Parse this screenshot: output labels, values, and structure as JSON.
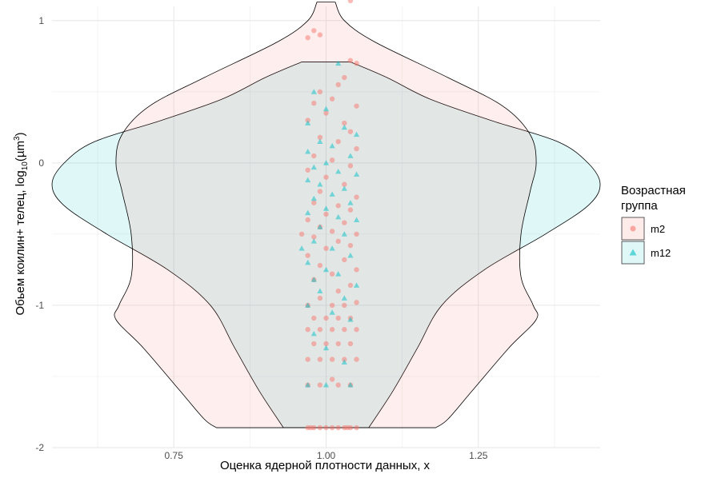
{
  "chart_data": {
    "type": "violin",
    "xlabel": "Оценка ядерной плотности данных, x",
    "ylabel_prefix": "Обьем коилин+ телец,  log",
    "ylabel_sub": "10",
    "ylabel_mid": "(µm",
    "ylabel_sup": "3",
    "ylabel_suffix": ")",
    "xlim": [
      0.55,
      1.45
    ],
    "ylim": [
      -2,
      1.1
    ],
    "x_ticks": [
      {
        "value": 0.75,
        "label": "0.75"
      },
      {
        "value": 1.0,
        "label": "1.00"
      },
      {
        "value": 1.25,
        "label": "1.25"
      }
    ],
    "y_ticks": [
      {
        "value": 1,
        "label": "1"
      },
      {
        "value": 0,
        "label": "0"
      },
      {
        "value": -1,
        "label": "-1"
      },
      {
        "value": -2,
        "label": "-2"
      }
    ],
    "grid": true,
    "legend": {
      "title_line1": "Возрастная",
      "title_line2": "группа",
      "placement": "right"
    },
    "series": [
      {
        "name": "m2",
        "color": "#F8766D",
        "fill": "#FDEBEA",
        "marker": "circle",
        "violin": [
          {
            "y": 1.13,
            "half": 0.015
          },
          {
            "y": 1.0,
            "half": 0.03
          },
          {
            "y": 0.85,
            "half": 0.08
          },
          {
            "y": 0.6,
            "half": 0.2
          },
          {
            "y": 0.4,
            "half": 0.29
          },
          {
            "y": 0.2,
            "half": 0.335
          },
          {
            "y": 0.0,
            "half": 0.345
          },
          {
            "y": -0.2,
            "half": 0.335
          },
          {
            "y": -0.5,
            "half": 0.32
          },
          {
            "y": -0.8,
            "half": 0.32
          },
          {
            "y": -1.0,
            "half": 0.34
          },
          {
            "y": -1.1,
            "half": 0.345
          },
          {
            "y": -1.3,
            "half": 0.3
          },
          {
            "y": -1.6,
            "half": 0.24
          },
          {
            "y": -1.8,
            "half": 0.2
          },
          {
            "y": -1.86,
            "half": 0.18
          }
        ],
        "points": [
          [
            1.04,
            1.14
          ],
          [
            0.98,
            0.93
          ],
          [
            0.99,
            0.9
          ],
          [
            0.97,
            0.88
          ],
          [
            1.05,
            0.7
          ],
          [
            1.04,
            0.72
          ],
          [
            1.03,
            0.6
          ],
          [
            1.02,
            0.55
          ],
          [
            0.99,
            0.5
          ],
          [
            1.01,
            0.45
          ],
          [
            0.98,
            0.42
          ],
          [
            1.05,
            0.4
          ],
          [
            1.0,
            0.35
          ],
          [
            0.97,
            0.3
          ],
          [
            1.03,
            0.28
          ],
          [
            1.04,
            0.22
          ],
          [
            0.99,
            0.18
          ],
          [
            1.02,
            0.15
          ],
          [
            1.05,
            0.1
          ],
          [
            0.98,
            0.05
          ],
          [
            1.01,
            0.02
          ],
          [
            1.04,
            -0.02
          ],
          [
            0.97,
            -0.05
          ],
          [
            1.0,
            -0.1
          ],
          [
            1.03,
            -0.15
          ],
          [
            0.99,
            -0.2
          ],
          [
            1.05,
            -0.24
          ],
          [
            0.98,
            -0.28
          ],
          [
            1.02,
            -0.3
          ],
          [
            1.04,
            -0.33
          ],
          [
            1.0,
            -0.36
          ],
          [
            0.97,
            -0.4
          ],
          [
            1.03,
            -0.42
          ],
          [
            0.99,
            -0.45
          ],
          [
            1.01,
            -0.48
          ],
          [
            1.05,
            -0.5
          ],
          [
            0.98,
            -0.52
          ],
          [
            1.02,
            -0.55
          ],
          [
            1.04,
            -0.58
          ],
          [
            0.96,
            -0.5
          ],
          [
            1.0,
            -0.6
          ],
          [
            0.97,
            -0.65
          ],
          [
            1.03,
            -0.68
          ],
          [
            0.99,
            -0.72
          ],
          [
            1.05,
            -0.75
          ],
          [
            1.01,
            -0.78
          ],
          [
            0.98,
            -0.82
          ],
          [
            1.04,
            -0.86
          ],
          [
            1.02,
            -0.9
          ],
          [
            0.99,
            -0.95
          ],
          [
            1.05,
            -0.98
          ],
          [
            0.97,
            -1.0
          ],
          [
            1.01,
            -1.0
          ],
          [
            1.03,
            -1.0
          ],
          [
            0.98,
            -1.09
          ],
          [
            1.0,
            -1.09
          ],
          [
            1.02,
            -1.09
          ],
          [
            1.04,
            -1.09
          ],
          [
            0.97,
            -1.17
          ],
          [
            0.99,
            -1.17
          ],
          [
            1.01,
            -1.17
          ],
          [
            1.03,
            -1.17
          ],
          [
            1.05,
            -1.17
          ],
          [
            0.98,
            -1.27
          ],
          [
            1.0,
            -1.27
          ],
          [
            1.02,
            -1.27
          ],
          [
            1.04,
            -1.27
          ],
          [
            0.97,
            -1.38
          ],
          [
            0.99,
            -1.38
          ],
          [
            1.01,
            -1.38
          ],
          [
            1.03,
            -1.38
          ],
          [
            1.05,
            -1.38
          ],
          [
            1.01,
            -1.52
          ],
          [
            0.97,
            -1.56
          ],
          [
            0.99,
            -1.56
          ],
          [
            1.02,
            -1.56
          ],
          [
            1.04,
            -1.56
          ],
          [
            0.97,
            -1.86
          ],
          [
            0.98,
            -1.86
          ],
          [
            0.99,
            -1.86
          ],
          [
            1.0,
            -1.86
          ],
          [
            1.01,
            -1.86
          ],
          [
            1.02,
            -1.86
          ],
          [
            1.03,
            -1.86
          ],
          [
            1.04,
            -1.86
          ],
          [
            1.05,
            -1.86
          ],
          [
            0.975,
            -1.86
          ],
          [
            1.035,
            -1.86
          ]
        ]
      },
      {
        "name": "m12",
        "color": "#00BFC4",
        "fill": "#E0F7F8",
        "marker": "triangle",
        "violin": [
          {
            "y": 0.71,
            "half": 0.04
          },
          {
            "y": 0.6,
            "half": 0.1
          },
          {
            "y": 0.45,
            "half": 0.17
          },
          {
            "y": 0.3,
            "half": 0.27
          },
          {
            "y": 0.15,
            "half": 0.38
          },
          {
            "y": 0.0,
            "half": 0.43
          },
          {
            "y": -0.15,
            "half": 0.45
          },
          {
            "y": -0.3,
            "half": 0.43
          },
          {
            "y": -0.5,
            "half": 0.36
          },
          {
            "y": -0.75,
            "half": 0.26
          },
          {
            "y": -1.0,
            "half": 0.19
          },
          {
            "y": -1.3,
            "half": 0.15
          },
          {
            "y": -1.6,
            "half": 0.11
          },
          {
            "y": -1.86,
            "half": 0.07
          }
        ],
        "points": [
          [
            1.02,
            0.7
          ],
          [
            0.98,
            0.5
          ],
          [
            1.0,
            0.38
          ],
          [
            0.97,
            0.28
          ],
          [
            1.03,
            0.25
          ],
          [
            1.05,
            0.2
          ],
          [
            0.99,
            0.15
          ],
          [
            1.01,
            0.12
          ],
          [
            0.97,
            0.08
          ],
          [
            1.04,
            0.05
          ],
          [
            1.0,
            0.0
          ],
          [
            0.98,
            -0.03
          ],
          [
            1.02,
            -0.06
          ],
          [
            1.05,
            -0.08
          ],
          [
            0.97,
            -0.12
          ],
          [
            0.99,
            -0.15
          ],
          [
            1.03,
            -0.18
          ],
          [
            1.01,
            -0.22
          ],
          [
            0.98,
            -0.25
          ],
          [
            1.04,
            -0.28
          ],
          [
            1.0,
            -0.32
          ],
          [
            0.97,
            -0.35
          ],
          [
            1.02,
            -0.38
          ],
          [
            1.05,
            -0.4
          ],
          [
            0.99,
            -0.45
          ],
          [
            1.03,
            -0.5
          ],
          [
            0.98,
            -0.55
          ],
          [
            1.01,
            -0.6
          ],
          [
            1.04,
            -0.65
          ],
          [
            0.97,
            -0.7
          ],
          [
            1.0,
            -0.75
          ],
          [
            1.02,
            -0.78
          ],
          [
            0.98,
            -0.82
          ],
          [
            1.05,
            -0.86
          ],
          [
            0.99,
            -0.9
          ],
          [
            1.03,
            -0.95
          ],
          [
            0.97,
            -1.0
          ],
          [
            1.01,
            -1.05
          ],
          [
            1.04,
            -1.1
          ],
          [
            0.98,
            -1.2
          ],
          [
            1.0,
            -1.3
          ],
          [
            1.03,
            -1.4
          ],
          [
            0.97,
            -1.56
          ],
          [
            1.0,
            -1.56
          ],
          [
            1.04,
            -1.56
          ],
          [
            0.96,
            -0.6
          ]
        ]
      }
    ]
  }
}
